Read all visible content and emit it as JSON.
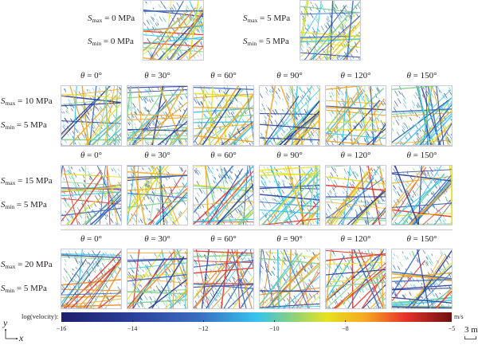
{
  "top_row": [
    {
      "smax_label": "S",
      "smax_sub": "max",
      "smax_value": " = 0 MPa",
      "smin_label": "S",
      "smin_sub": "min",
      "smin_value": " = 0 MPa",
      "palette": "warm"
    },
    {
      "smax_label": "S",
      "smax_sub": "max",
      "smax_value": " = 5 MPa",
      "smin_label": "S",
      "smin_sub": "min",
      "smin_value": " = 5 MPa",
      "palette": "cool"
    }
  ],
  "grid_rows": [
    {
      "smax_label": "S",
      "smax_sub": "max",
      "smax_value": " = 10 MPa",
      "smin_label": "S",
      "smin_sub": "min",
      "smin_value": " = 5 MPa",
      "palette": "mid"
    },
    {
      "smax_label": "S",
      "smax_sub": "max",
      "smax_value": " = 15 MPa",
      "smin_label": "S",
      "smin_sub": "min",
      "smin_value": " = 5 MPa",
      "palette": "midwarm"
    },
    {
      "smax_label": "S",
      "smax_sub": "max",
      "smax_value": " = 20 MPa",
      "smin_label": "S",
      "smin_sub": "min",
      "smin_value": " = 5 MPa",
      "palette": "warm"
    }
  ],
  "theta_symbol": "θ",
  "theta_labels": [
    " = 0°",
    " = 30°",
    " = 60°",
    " = 90°",
    " = 120°",
    " = 150°"
  ],
  "colorbar": {
    "title": "log(velocity):",
    "unit": "m/s",
    "ticks": [
      "−16",
      "−14",
      "−12",
      "−10",
      "−8",
      "−5"
    ],
    "range": [
      -16,
      -5
    ],
    "tick_values": [
      -16,
      -14,
      -12,
      -10,
      -8,
      -5
    ],
    "colors": [
      "#1d1f6b",
      "#2b3f9a",
      "#3a6cc0",
      "#35c3ee",
      "#7fcf8c",
      "#e6e21e",
      "#f5a623",
      "#e8332a",
      "#6e1010"
    ]
  },
  "axes": {
    "y_label": "y",
    "x_label": "x"
  },
  "scale_bar": {
    "label": "3 m"
  }
}
